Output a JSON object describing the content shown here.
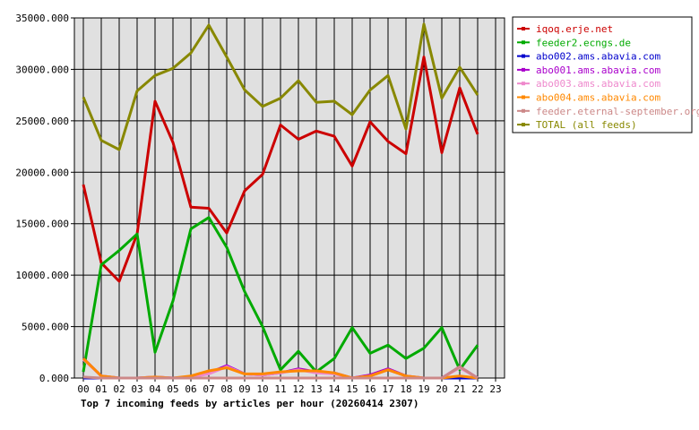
{
  "chart_data": {
    "type": "line",
    "title": "Top 7 incoming feeds by articles per hour (20260414 2307)",
    "x_ticks": [
      "00",
      "01",
      "02",
      "03",
      "04",
      "05",
      "06",
      "07",
      "08",
      "09",
      "10",
      "11",
      "12",
      "13",
      "14",
      "15",
      "16",
      "17",
      "18",
      "19",
      "20",
      "21",
      "22",
      "23"
    ],
    "y_ticks": [
      "0.000",
      "5000.000",
      "10000.000",
      "15000.000",
      "20000.000",
      "25000.000",
      "30000.000",
      "35000.000"
    ],
    "ylim": [
      0,
      35000
    ],
    "grid": true,
    "legend_position": "right",
    "colors": {
      "plot_background": "#e0e0e0",
      "grid": "#000000"
    },
    "series": [
      {
        "name": "iqoq.erje.net",
        "color": "#cc0000",
        "values": [
          18800,
          11200,
          9400,
          14000,
          26900,
          22900,
          16600,
          16500,
          14100,
          18200,
          19800,
          24600,
          23200,
          24000,
          23500,
          20600,
          24900,
          23000,
          21800,
          31200,
          21900,
          28200,
          23700
        ]
      },
      {
        "name": "feeder2.ecngs.de",
        "color": "#00aa00",
        "values": [
          600,
          11000,
          12400,
          14000,
          2500,
          7500,
          14500,
          15600,
          12700,
          8400,
          5000,
          800,
          2600,
          600,
          1900,
          4900,
          2400,
          3200,
          1900,
          2900,
          4900,
          800,
          3200
        ]
      },
      {
        "name": "abo002.ams.abavia.com",
        "color": "#0000cc",
        "values": [
          0,
          0,
          0,
          0,
          0,
          0,
          0,
          0,
          0,
          0,
          0,
          0,
          0,
          0,
          0,
          0,
          0,
          0,
          0,
          0,
          0,
          0,
          0
        ]
      },
      {
        "name": "abo001.ams.abavia.com",
        "color": "#aa00cc",
        "values": [
          1900,
          200,
          0,
          0,
          100,
          0,
          100,
          500,
          1200,
          400,
          300,
          500,
          900,
          600,
          500,
          0,
          300,
          900,
          200,
          0,
          0,
          1100,
          0
        ]
      },
      {
        "name": "abo003.ams.abavia.com",
        "color": "#ee88cc",
        "values": [
          1800,
          200,
          0,
          0,
          100,
          0,
          100,
          400,
          1100,
          400,
          300,
          500,
          800,
          500,
          400,
          0,
          200,
          800,
          200,
          0,
          0,
          1000,
          0
        ]
      },
      {
        "name": "abo004.ams.abavia.com",
        "color": "#ff8800",
        "values": [
          1900,
          200,
          0,
          0,
          100,
          0,
          200,
          700,
          1000,
          400,
          400,
          600,
          700,
          700,
          500,
          0,
          200,
          800,
          200,
          0,
          0,
          200,
          0
        ]
      },
      {
        "name": "feeder.eternal-september.org",
        "color": "#cc8888",
        "values": [
          100,
          0,
          0,
          0,
          0,
          0,
          0,
          0,
          0,
          0,
          0,
          0,
          0,
          0,
          0,
          0,
          0,
          0,
          0,
          0,
          0,
          1100,
          0
        ]
      },
      {
        "name": "TOTAL (all feeds)",
        "color": "#888800",
        "values": [
          27300,
          23100,
          22200,
          27900,
          29400,
          30100,
          31600,
          34300,
          31200,
          28000,
          26400,
          27200,
          28900,
          26800,
          26900,
          25600,
          28000,
          29400,
          24200,
          34400,
          27200,
          30200,
          27500
        ]
      }
    ]
  }
}
